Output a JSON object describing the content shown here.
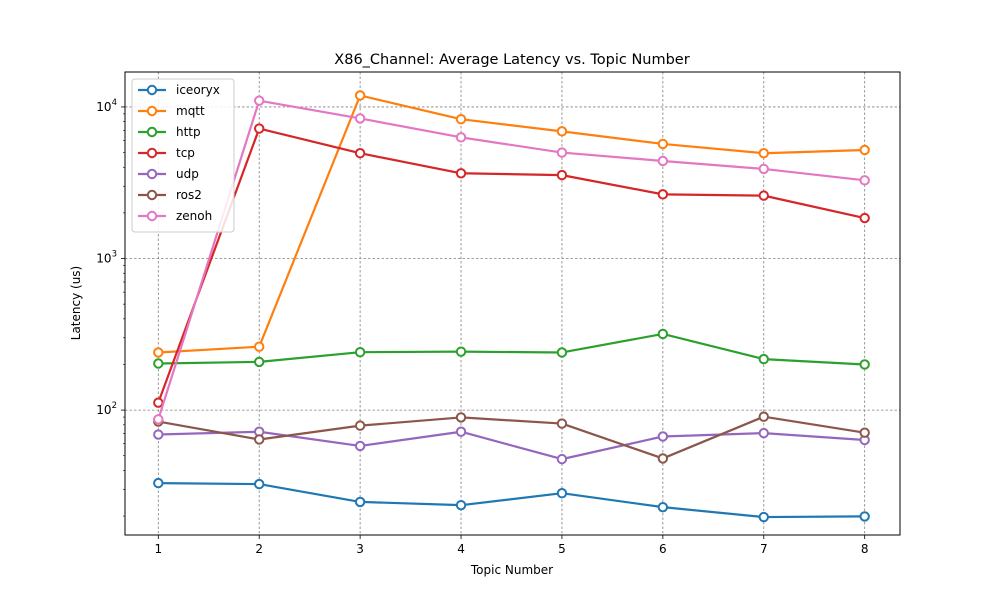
{
  "chart_data": {
    "type": "line",
    "title": "X86_Channel: Average Latency vs. Topic Number",
    "xlabel": "Topic Number",
    "ylabel": "Latency (us)",
    "yscale": "log",
    "ylim": [
      15,
      17000
    ],
    "xlim": [
      0.67,
      8.35
    ],
    "x": [
      1,
      2,
      3,
      4,
      5,
      6,
      7,
      8
    ],
    "x_tick_labels": [
      "1",
      "2",
      "3",
      "4",
      "5",
      "6",
      "7",
      "8"
    ],
    "y_ticks": [
      {
        "value": 100,
        "base": "10",
        "exp": "2"
      },
      {
        "value": 1000,
        "base": "10",
        "exp": "3"
      },
      {
        "value": 10000,
        "base": "10",
        "exp": "4"
      }
    ],
    "grid": true,
    "legend_position": "top-left",
    "series": [
      {
        "name": "iceoryx",
        "color": "#1f77b4",
        "values": [
          33,
          32.5,
          24.8,
          23.6,
          28.3,
          22.9,
          19.7,
          19.9
        ]
      },
      {
        "name": "mqtt",
        "color": "#ff7f0e",
        "values": [
          240,
          262,
          11900,
          8300,
          6900,
          5700,
          4950,
          5200
        ]
      },
      {
        "name": "http",
        "color": "#2ca02c",
        "values": [
          203,
          208,
          241,
          243,
          240,
          318,
          217,
          200
        ]
      },
      {
        "name": "tcp",
        "color": "#d62728",
        "values": [
          112,
          7200,
          4950,
          3650,
          3550,
          2650,
          2600,
          1850
        ]
      },
      {
        "name": "udp",
        "color": "#9467bd",
        "values": [
          69,
          72,
          58,
          72,
          47.5,
          67,
          70.5,
          63.5
        ]
      },
      {
        "name": "ros2",
        "color": "#8c564b",
        "values": [
          84,
          64,
          79,
          89.5,
          81.5,
          48,
          90.5,
          71
        ]
      },
      {
        "name": "zenoh",
        "color": "#e377c2",
        "values": [
          87,
          11000,
          8400,
          6300,
          5000,
          4400,
          3900,
          3280
        ]
      }
    ]
  }
}
